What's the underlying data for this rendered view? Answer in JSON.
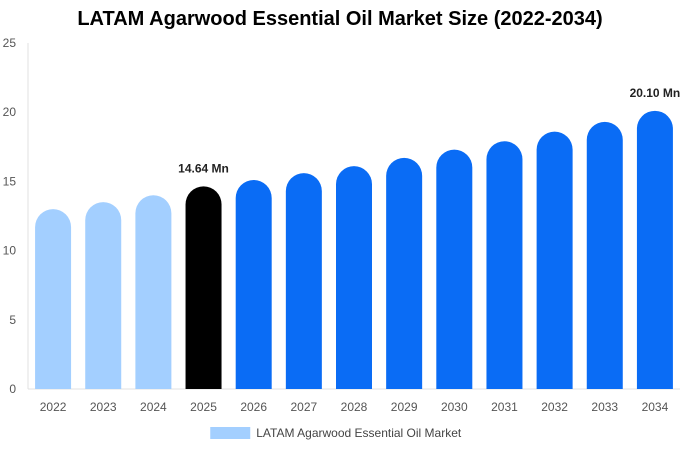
{
  "chart_data": {
    "type": "bar",
    "title": "LATAM Agarwood Essential Oil Market Size (2022-2034)",
    "xlabel": "",
    "ylabel": "",
    "categories": [
      "2022",
      "2023",
      "2024",
      "2025",
      "2026",
      "2027",
      "2028",
      "2029",
      "2030",
      "2031",
      "2032",
      "2033",
      "2034"
    ],
    "series": [
      {
        "name": "LATAM Agarwood Essential Oil Market",
        "values": [
          13.0,
          13.5,
          14.0,
          14.64,
          15.1,
          15.6,
          16.1,
          16.7,
          17.3,
          17.9,
          18.6,
          19.3,
          20.1
        ]
      }
    ],
    "ylim": [
      0,
      25
    ],
    "yticks": [
      "0",
      "5",
      "10",
      "15",
      "20",
      "25"
    ],
    "data_labels": [
      {
        "category": "2025",
        "text": "14.64 Mn"
      },
      {
        "category": "2034",
        "text": "20.10 Mn"
      }
    ],
    "colors": {
      "historical": "#a3cfff",
      "base_year": "#000000",
      "forecast": "#0a6cf5",
      "legend_swatch": "#a3cfff"
    },
    "grid": false,
    "legend_position": "bottom-center"
  }
}
